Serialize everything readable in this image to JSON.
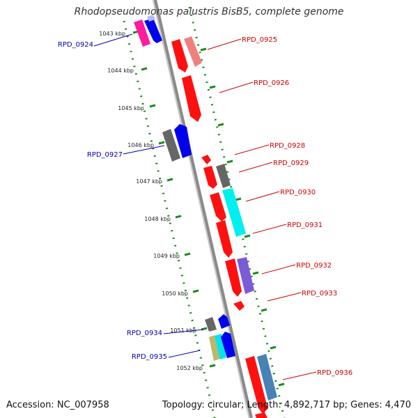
{
  "title": "Rhodopseudomonas palustris BisB5, complete genome",
  "accession": "Accession: NC_007958",
  "topology": "Topology: circular; Length: 4,892,717 bp; Genes: 4,470",
  "ticks": [
    "1043 kbp",
    "1044 kbp",
    "1045 kbp",
    "1046 kbp",
    "1047 kbp",
    "1048 kbp",
    "1049 kbp",
    "1050 kbp",
    "1051 kbp",
    "1052 kbp"
  ],
  "gene_labels_left": [
    "RPD_0924",
    "RPD_0927",
    "RPD_0934",
    "RPD_0935"
  ],
  "gene_labels_right": [
    "RPD_0925",
    "RPD_0926",
    "RPD_0928",
    "RPD_0929",
    "RPD_0930",
    "RPD_0931",
    "RPD_0932",
    "RPD_0933",
    "RPD_0936"
  ],
  "colors": {
    "backbone": "#8a8a8a",
    "left_label": "#0000aa",
    "right_label": "#cc0000",
    "tick_dots": "#1f8a1f"
  }
}
